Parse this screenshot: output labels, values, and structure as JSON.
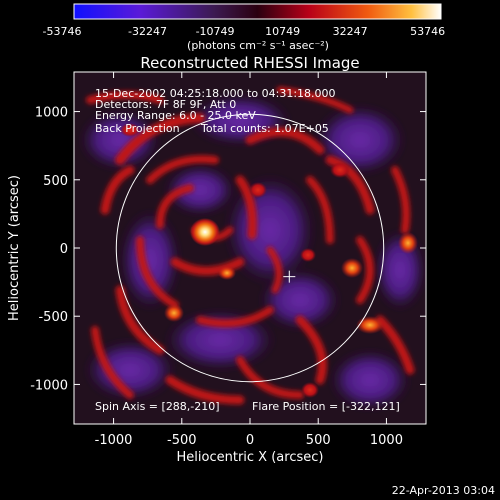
{
  "colorbar": {
    "ticks": [
      "-53746",
      "-32247",
      "-10749",
      "10749",
      "32247",
      "53746"
    ],
    "units": "(photons cm⁻² s⁻¹ asec⁻²)",
    "colors": [
      "#1010ff",
      "#5a1ad8",
      "#3c1a52",
      "#2a0010",
      "#b80018",
      "#f05a10",
      "#ffc040",
      "#ffffff"
    ]
  },
  "title": "Reconstructed RHESSI Image",
  "info": {
    "line1": "15-Dec-2002 04:25:18.000 to 04:31:18.000",
    "line2": "Detectors: 7F 8F 9F, Att 0",
    "line3": "Energy Range: 6.0 - 25.0 keV",
    "line4_left": "Back Projection",
    "line4_right": "Total counts: 1.07E+05"
  },
  "footer": {
    "spin_axis": "Spin Axis = [288,-210]",
    "flare_position": "Flare Position = [-322,121]",
    "timestamp": "22-Apr-2013 03:04"
  },
  "axes": {
    "xlabel": "Heliocentric X (arcsec)",
    "ylabel": "Heliocentric Y (arcsec)",
    "x_ticks": [
      "-1000",
      "-500",
      "0",
      "500",
      "1000"
    ],
    "y_ticks": [
      "1000",
      "500",
      "0",
      "-500",
      "-1000"
    ],
    "x_tick_values": [
      -1000,
      -500,
      0,
      500,
      1000
    ],
    "y_tick_values": [
      1000,
      500,
      0,
      -500,
      -1000
    ],
    "xlim": [
      -1290,
      1290
    ],
    "ylim": [
      -1290,
      1290
    ]
  },
  "map": {
    "solar_limb_radius": 980,
    "sun_center_marker": [
      288,
      -210
    ],
    "flare_position": [
      -322,
      121
    ]
  }
}
